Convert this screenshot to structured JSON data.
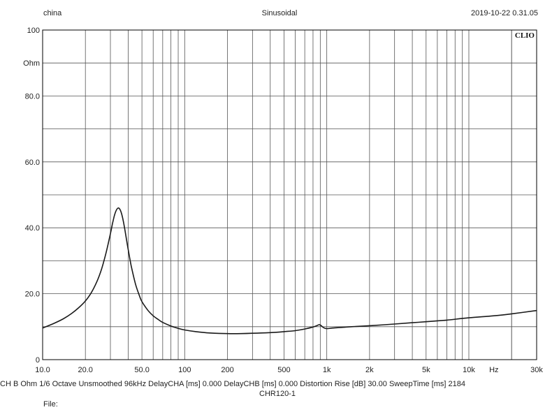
{
  "header": {
    "left": "china",
    "center": "Sinusoidal",
    "right": "2019-10-22 0.31.05"
  },
  "logo": "CLIO",
  "footer": {
    "info": "CH B  Ohm  1/6 Octave  Unsmoothed  96kHz  DelayCHA [ms] 0.000  DelayCHB [ms] 0.000  Distortion Rise [dB] 30.00  SweepTime [ms] 2184",
    "name": "CHR120-1",
    "file_label": "File:",
    "file_value": ""
  },
  "chart_data": {
    "type": "line",
    "title": "",
    "xlabel": "Hz",
    "ylabel": "Ohm",
    "xscale": "log",
    "xlim": [
      10,
      30000
    ],
    "ylim": [
      0,
      100
    ],
    "grid": true,
    "x_ticks": [
      {
        "value": 10,
        "label": "10.0"
      },
      {
        "value": 20,
        "label": "20.0"
      },
      {
        "value": 50,
        "label": "50.0"
      },
      {
        "value": 100,
        "label": "100"
      },
      {
        "value": 200,
        "label": "200"
      },
      {
        "value": 500,
        "label": "500"
      },
      {
        "value": 1000,
        "label": "1k"
      },
      {
        "value": 2000,
        "label": "2k"
      },
      {
        "value": 5000,
        "label": "5k"
      },
      {
        "value": 10000,
        "label": "10k"
      },
      {
        "value": 30000,
        "label": "30k"
      }
    ],
    "x_unit_tick": {
      "value": 15000,
      "label": "Hz"
    },
    "y_ticks": [
      {
        "value": 0,
        "label": "0"
      },
      {
        "value": 20,
        "label": "20.0"
      },
      {
        "value": 40,
        "label": "40.0"
      },
      {
        "value": 60,
        "label": "60.0"
      },
      {
        "value": 80,
        "label": "80.0"
      },
      {
        "value": 100,
        "label": "100"
      }
    ],
    "y_unit_tick": {
      "value": 90,
      "label": "Ohm"
    },
    "series": [
      {
        "color": "#1a1a1a",
        "x": [
          10,
          12,
          14,
          16,
          18,
          20,
          22,
          24,
          26,
          28,
          30,
          31,
          32,
          33,
          34,
          35,
          36,
          37,
          38,
          40,
          42,
          45,
          48,
          50,
          55,
          60,
          65,
          70,
          80,
          90,
          100,
          120,
          150,
          200,
          250,
          300,
          400,
          500,
          600,
          700,
          800,
          850,
          880,
          900,
          920,
          950,
          1000,
          1100,
          1300,
          1500,
          2000,
          3000,
          4000,
          5000,
          7000,
          10000,
          15000,
          20000,
          30000
        ],
        "y": [
          9.6,
          11.0,
          12.4,
          14.0,
          15.8,
          17.8,
          20.3,
          23.5,
          27.5,
          32.5,
          38.2,
          41.2,
          43.7,
          45.3,
          46.0,
          45.6,
          44.2,
          42.0,
          39.2,
          33.5,
          28.5,
          23.0,
          19.4,
          17.6,
          15.0,
          13.3,
          12.2,
          11.3,
          10.2,
          9.5,
          9.0,
          8.5,
          8.1,
          7.9,
          7.9,
          8.0,
          8.2,
          8.5,
          8.8,
          9.3,
          9.9,
          10.3,
          10.6,
          10.5,
          10.2,
          9.7,
          9.4,
          9.6,
          9.8,
          10.0,
          10.3,
          10.8,
          11.2,
          11.5,
          12.0,
          12.7,
          13.3,
          13.9,
          14.9
        ]
      }
    ]
  }
}
